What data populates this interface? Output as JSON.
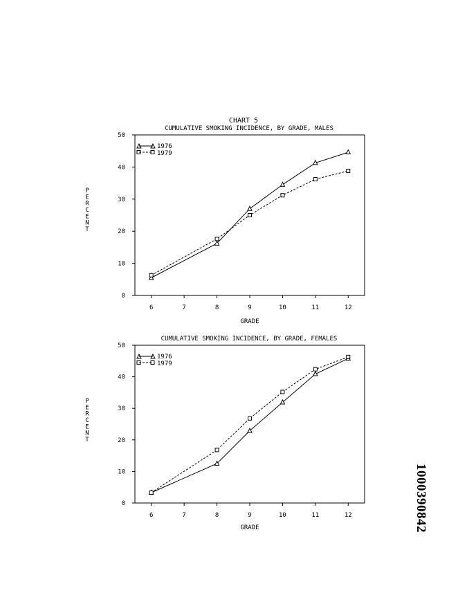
{
  "document": {
    "chart_number": "CHART 5",
    "page_id": "1000390842"
  },
  "chart_data": [
    {
      "type": "line",
      "title": "CUMULATIVE SMOKING INCIDENCE, BY GRADE, MALES",
      "xlabel": "GRADE",
      "ylabel": "PERCENT",
      "x": [
        6,
        7,
        8,
        9,
        10,
        11,
        12
      ],
      "xticks": [
        6,
        7,
        8,
        9,
        10,
        11,
        12
      ],
      "yticks": [
        0,
        10,
        20,
        30,
        40,
        50
      ],
      "xlim": [
        5.5,
        12.5
      ],
      "ylim": [
        0,
        50
      ],
      "legend_position": "top-left",
      "grid": false,
      "series": [
        {
          "name": "1976",
          "marker": "triangle",
          "dash": "solid",
          "points": [
            [
              6,
              5.5
            ],
            [
              8,
              16.2
            ],
            [
              9,
              27.0
            ],
            [
              10,
              34.5
            ],
            [
              11,
              41.3
            ],
            [
              12,
              44.6
            ]
          ]
        },
        {
          "name": "1979",
          "marker": "square",
          "dash": "dashed",
          "points": [
            [
              6,
              6.3
            ],
            [
              8,
              17.6
            ],
            [
              9,
              25.0
            ],
            [
              10,
              31.2
            ],
            [
              11,
              36.2
            ],
            [
              12,
              38.8
            ]
          ]
        }
      ]
    },
    {
      "type": "line",
      "title": "CUMULATIVE SMOKING INCIDENCE, BY GRADE, FEMALES",
      "xlabel": "GRADE",
      "ylabel": "PERCENT",
      "x": [
        6,
        7,
        8,
        9,
        10,
        11,
        12
      ],
      "xticks": [
        6,
        7,
        8,
        9,
        10,
        11,
        12
      ],
      "yticks": [
        0,
        10,
        20,
        30,
        40,
        50
      ],
      "xlim": [
        5.5,
        12.5
      ],
      "ylim": [
        0,
        50
      ],
      "legend_position": "top-left",
      "grid": false,
      "series": [
        {
          "name": "1976",
          "marker": "triangle",
          "dash": "solid",
          "points": [
            [
              6,
              3.3
            ],
            [
              8,
              12.5
            ],
            [
              9,
              22.9
            ],
            [
              10,
              31.9
            ],
            [
              11,
              40.9
            ],
            [
              12,
              45.8
            ]
          ]
        },
        {
          "name": "1979",
          "marker": "square",
          "dash": "dashed",
          "points": [
            [
              6,
              3.3
            ],
            [
              8,
              16.8
            ],
            [
              9,
              26.8
            ],
            [
              10,
              35.2
            ],
            [
              11,
              42.4
            ],
            [
              12,
              46.3
            ]
          ]
        }
      ]
    }
  ]
}
